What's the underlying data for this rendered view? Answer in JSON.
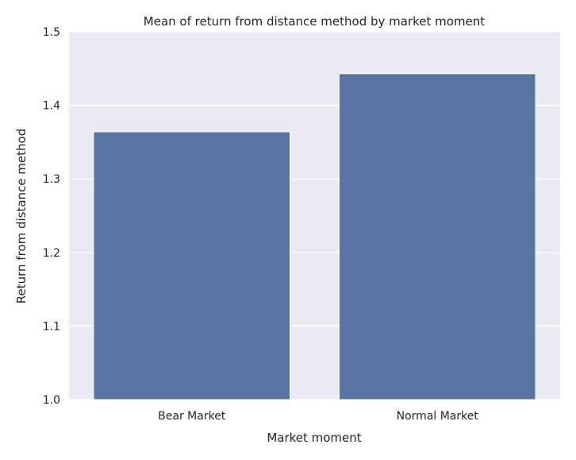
{
  "chart_data": {
    "type": "bar",
    "title": "Mean of return from distance method by market moment",
    "xlabel": "Market moment",
    "ylabel": "Return from distance method",
    "categories": [
      "Bear Market",
      "Normal Market"
    ],
    "values": [
      1.364,
      1.443
    ],
    "ylim": [
      1.0,
      1.5
    ],
    "yticks": [
      "1.0",
      "1.1",
      "1.2",
      "1.3",
      "1.4",
      "1.5"
    ],
    "grid": true,
    "colors": {
      "bar": "#5975a4",
      "background": "#eaeaf2",
      "grid": "#ffffff"
    }
  }
}
